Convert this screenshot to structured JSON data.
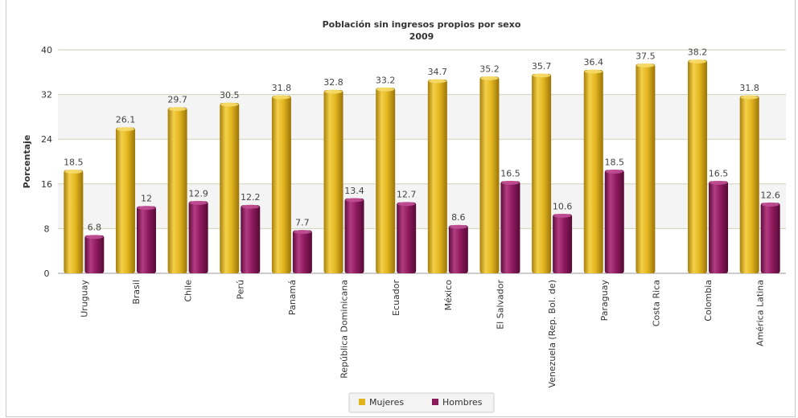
{
  "chart_data": {
    "type": "bar",
    "title": "Población sin ingresos propios por sexo",
    "subtitle": "2009",
    "ylabel": "Porcentaje",
    "xlabel": "",
    "ylim": [
      0,
      40
    ],
    "yticks": [
      0,
      8,
      16,
      24,
      32,
      40
    ],
    "grid": true,
    "legend_position": "bottom",
    "categories": [
      "Uruguay",
      "Brasil",
      "Chile",
      "Perú",
      "Panamá",
      "República Dominicana",
      "Ecuador",
      "México",
      "El Salvador",
      "Venezuela (Rep. Bol. de)",
      "Paraguay",
      "Costa Rica",
      "Colombia",
      "América Latina"
    ],
    "series": [
      {
        "name": "Mujeres",
        "color": "#e2b41c",
        "values": [
          18.5,
          26.1,
          29.7,
          30.5,
          31.8,
          32.8,
          33.2,
          34.7,
          35.2,
          35.7,
          36.4,
          37.5,
          38.2,
          31.8
        ]
      },
      {
        "name": "Hombres",
        "color": "#8e1a5e",
        "values": [
          6.8,
          12,
          12.9,
          12.2,
          7.7,
          13.4,
          12.7,
          8.6,
          16.5,
          10.6,
          18.5,
          null,
          16.5,
          12.6
        ]
      }
    ]
  }
}
